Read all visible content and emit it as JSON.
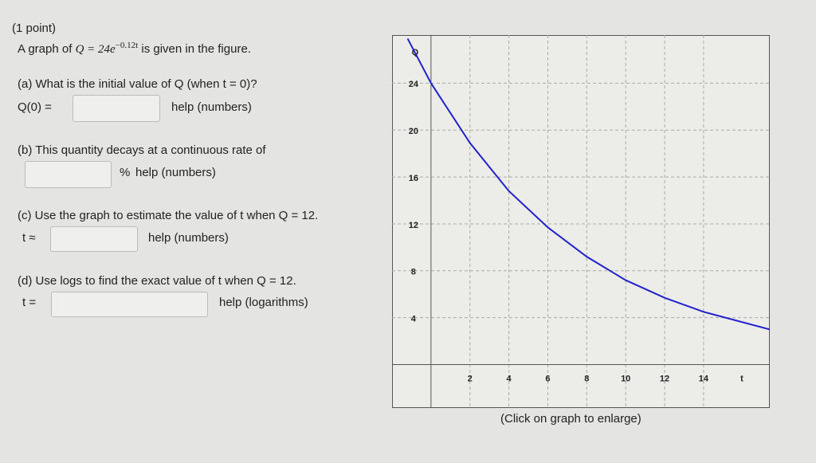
{
  "header": {
    "points": "(1 point)",
    "prompt_before": "A graph of",
    "formula": "Q = 24e",
    "exponent": "−0.12t",
    "prompt_after": "is given in the figure."
  },
  "parts": [
    {
      "question": "(a) What is the initial value of Q (when t = 0)?",
      "answer_label": "Q(0) =",
      "help": "help (numbers)"
    },
    {
      "question": "(b) This quantity decays at a continuous rate of",
      "answer_label": "%",
      "help": "help (numbers)"
    },
    {
      "question": "(c) Use the graph to estimate the value of t when Q = 12.",
      "answer_label": "t ≈",
      "help": "help (numbers)"
    },
    {
      "question": "(d) Use logs to find the exact value of t when Q = 12.",
      "answer_label": "t =",
      "help": "help (logarithms)"
    }
  ],
  "graph": {
    "x_label": "t",
    "y_label": "Q",
    "xlim": [
      -2,
      17.4
    ],
    "ylim": [
      -3.7,
      28.1
    ],
    "xticks": [
      2,
      4,
      6,
      8,
      10,
      12,
      14
    ],
    "yticks": [
      4,
      8,
      12,
      16,
      20,
      24
    ],
    "curve": {
      "color": "#2222cc",
      "x": [
        -1.2,
        0,
        2,
        4,
        6,
        8,
        10,
        12,
        14,
        17.4
      ],
      "y": [
        27.8,
        24,
        18.9,
        14.8,
        11.7,
        9.2,
        7.2,
        5.7,
        4.5,
        3.0
      ]
    },
    "caption": "(Click on graph to enlarge)"
  }
}
